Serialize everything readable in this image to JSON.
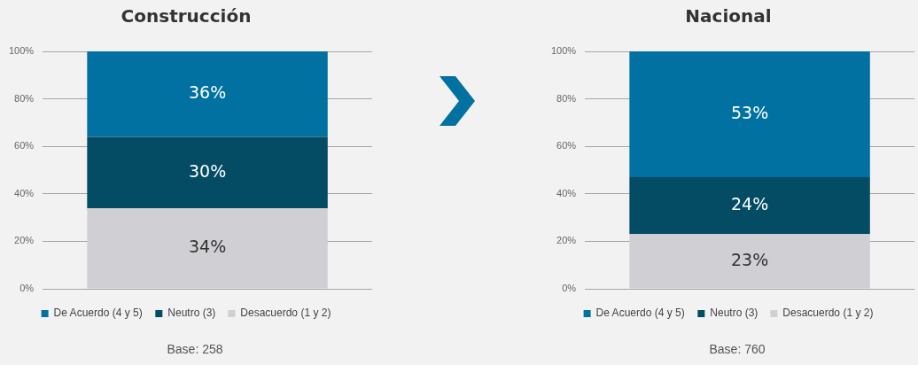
{
  "chart_data": [
    {
      "type": "bar",
      "title": "Construcción",
      "stacked": true,
      "categories": [
        null
      ],
      "ylim": [
        0,
        100
      ],
      "yticks": [
        {
          "value": 0,
          "label": "0%"
        },
        {
          "value": 20,
          "label": "20%"
        },
        {
          "value": 40,
          "label": "40%"
        },
        {
          "value": 60,
          "label": "60%"
        },
        {
          "value": 80,
          "label": "80%"
        },
        {
          "value": 100,
          "label": "100%"
        }
      ],
      "grid": "y",
      "legend": "bottom",
      "series": [
        {
          "name": "Desacuerdo (1 y 2)",
          "color": "#d0cfd3",
          "values": [
            34
          ],
          "value_labels": [
            "34%"
          ]
        },
        {
          "name": "Neutro (3)",
          "color": "#044c64",
          "values": [
            30
          ],
          "value_labels": [
            "30%"
          ]
        },
        {
          "name": "De Acuerdo (4 y 5)",
          "color": "#0071a0",
          "values": [
            36
          ],
          "value_labels": [
            "36%"
          ]
        }
      ],
      "annotations": [
        "Base: 258"
      ]
    },
    {
      "type": "bar",
      "title": "Nacional",
      "stacked": true,
      "categories": [
        null
      ],
      "ylim": [
        0,
        100
      ],
      "yticks": [
        {
          "value": 0,
          "label": "0%"
        },
        {
          "value": 20,
          "label": "20%"
        },
        {
          "value": 40,
          "label": "40%"
        },
        {
          "value": 60,
          "label": "60%"
        },
        {
          "value": 80,
          "label": "80%"
        },
        {
          "value": 100,
          "label": "100%"
        }
      ],
      "grid": "y",
      "legend": "bottom",
      "series": [
        {
          "name": "Desacuerdo (1 y 2)",
          "color": "#d0cfd3",
          "values": [
            23
          ],
          "value_labels": [
            "23%"
          ]
        },
        {
          "name": "Neutro (3)",
          "color": "#044c64",
          "values": [
            24
          ],
          "value_labels": [
            "24%"
          ]
        },
        {
          "name": "De Acuerdo (4 y 5)",
          "color": "#0071a0",
          "values": [
            53
          ],
          "value_labels": [
            "53%"
          ]
        }
      ],
      "annotations": [
        "Base: 760"
      ]
    }
  ]
}
